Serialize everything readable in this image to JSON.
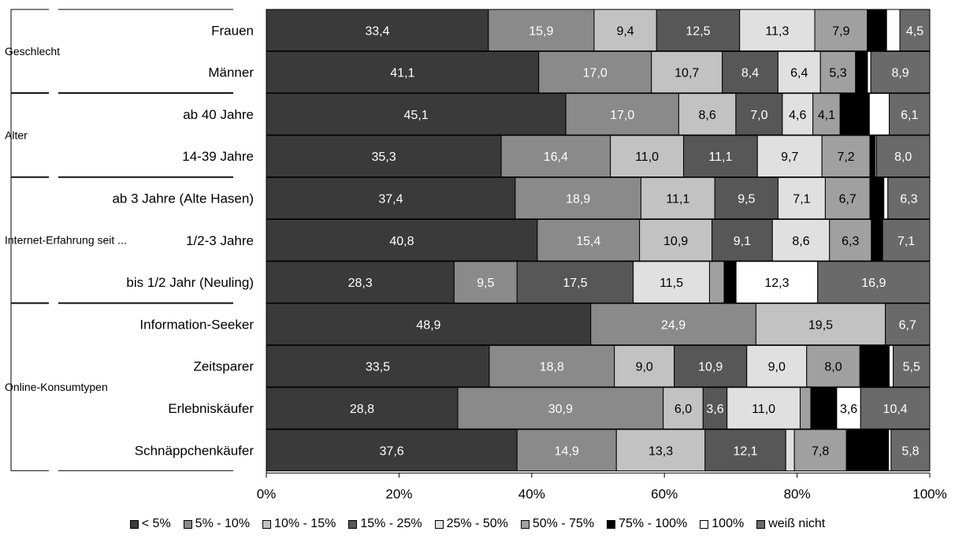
{
  "chart_data": {
    "type": "bar",
    "orientation": "horizontal",
    "stacked": "percent",
    "xlim": [
      0,
      100
    ],
    "x_ticks": [
      "0%",
      "20%",
      "40%",
      "60%",
      "80%",
      "100%"
    ],
    "grid": false,
    "legend_position": "bottom",
    "groups": [
      {
        "label": "Geschlecht",
        "categories": [
          "Frauen",
          "Männer"
        ]
      },
      {
        "label": "Alter",
        "categories": [
          "ab 40 Jahre",
          "14-39 Jahre"
        ]
      },
      {
        "label": "Internet-Erfahrung seit ...",
        "categories": [
          "ab 3 Jahre (Alte Hasen)",
          "1/2-3 Jahre",
          "bis 1/2 Jahr (Neuling)"
        ]
      },
      {
        "label": "Online-Konsumtypen",
        "categories": [
          "Information-Seeker",
          "Zeitsparer",
          "Erlebniskäufer",
          "Schnäppchenkäufer"
        ]
      }
    ],
    "categories": [
      "Frauen",
      "Männer",
      "ab 40 Jahre",
      "14-39 Jahre",
      "ab 3 Jahre (Alte Hasen)",
      "1/2-3 Jahre",
      "bis 1/2 Jahr (Neuling)",
      "Information-Seeker",
      "Zeitsparer",
      "Erlebniskäufer",
      "Schnäppchenkäufer"
    ],
    "series": [
      {
        "name": "< 5%",
        "color": "#3a3a3a",
        "text_color": "#ffffff",
        "values": [
          33.4,
          41.1,
          45.1,
          35.3,
          37.4,
          40.8,
          28.3,
          48.9,
          33.5,
          28.8,
          37.6
        ],
        "labels": [
          "33,4",
          "41,1",
          "45,1",
          "35,3",
          "37,4",
          "40,8",
          "28,3",
          "48,9",
          "33,5",
          "28,8",
          "37,6"
        ]
      },
      {
        "name": "5% - 10%",
        "color": "#8a8a8a",
        "text_color": "#ffffff",
        "values": [
          15.9,
          17.0,
          17.0,
          16.4,
          18.9,
          15.4,
          9.5,
          24.9,
          18.8,
          30.9,
          14.9
        ],
        "labels": [
          "15,9",
          "17,0",
          "17,0",
          "16,4",
          "18,9",
          "15,4",
          "9,5",
          "24,9",
          "18,8",
          "30,9",
          "14,9"
        ]
      },
      {
        "name": "10% - 15%",
        "color": "#c2c2c2",
        "text_color": "#000000",
        "values": [
          9.4,
          10.7,
          8.6,
          11.0,
          11.1,
          10.9,
          0,
          19.5,
          9.0,
          6.0,
          13.3
        ],
        "labels": [
          "9,4",
          "10,7",
          "8,6",
          "11,0",
          "11,1",
          "10,9",
          "",
          "19,5",
          "9,0",
          "6,0",
          "13,3"
        ]
      },
      {
        "name": "15% - 25%",
        "color": "#575757",
        "text_color": "#ffffff",
        "values": [
          12.5,
          8.4,
          7.0,
          11.1,
          9.5,
          9.1,
          17.5,
          0,
          10.9,
          3.6,
          12.1
        ],
        "labels": [
          "12,5",
          "8,4",
          "7,0",
          "11,1",
          "9,5",
          "9,1",
          "17,5",
          "",
          "10,9",
          "3,6",
          "12,1"
        ]
      },
      {
        "name": "25% - 50%",
        "color": "#e0e0e0",
        "text_color": "#000000",
        "values": [
          11.3,
          6.4,
          4.6,
          9.7,
          7.1,
          8.6,
          11.5,
          0,
          9.0,
          11.0,
          1.3
        ],
        "labels": [
          "11,3",
          "6,4",
          "4,6",
          "9,7",
          "7,1",
          "8,6",
          "11,5",
          "",
          "9,0",
          "11,0",
          ""
        ]
      },
      {
        "name": "50% - 75%",
        "color": "#a0a0a0",
        "text_color": "#000000",
        "values": [
          7.9,
          5.3,
          4.1,
          7.2,
          6.7,
          6.3,
          2.2,
          0,
          8.0,
          1.6,
          7.8
        ],
        "labels": [
          "7,9",
          "5,3",
          "4,1",
          "7,2",
          "6,7",
          "6,3",
          "",
          "",
          "8,0",
          "",
          "7,8"
        ]
      },
      {
        "name": "75% - 100%",
        "color": "#000000",
        "text_color": "#ffffff",
        "values": [
          2.9,
          1.8,
          4.4,
          0.8,
          2.1,
          1.6,
          1.8,
          0,
          4.4,
          3.9,
          6.3
        ],
        "labels": [
          "",
          "",
          "",
          "",
          "",
          "",
          "",
          "",
          "",
          "",
          ""
        ]
      },
      {
        "name": "100%",
        "color": "#ffffff",
        "text_color": "#000000",
        "values": [
          2.0,
          0.5,
          3.0,
          0.2,
          0.6,
          0.1,
          12.3,
          0,
          0.6,
          3.6,
          0.4
        ],
        "labels": [
          "",
          "",
          "",
          "",
          "",
          "",
          "12,3",
          "",
          "",
          "3,6",
          ""
        ]
      },
      {
        "name": "weiß nicht",
        "color": "#6a6a6a",
        "text_color": "#ffffff",
        "values": [
          4.5,
          8.9,
          6.1,
          8.0,
          6.3,
          7.1,
          16.9,
          6.7,
          5.5,
          10.4,
          5.8
        ],
        "labels": [
          "4,5",
          "8,9",
          "6,1",
          "8,0",
          "6,3",
          "7,1",
          "16,9",
          "6,7",
          "5,5",
          "10,4",
          "5,8"
        ]
      }
    ]
  }
}
